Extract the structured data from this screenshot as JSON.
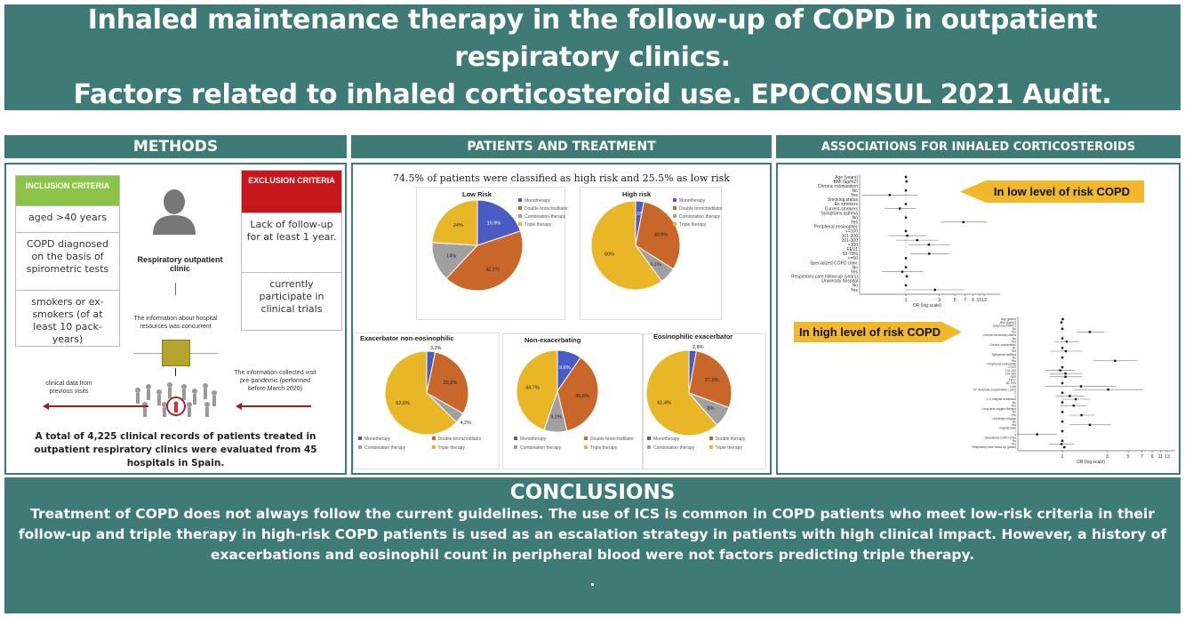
{
  "title": {
    "line1": "Inhaled maintenance therapy in the follow-up of COPD in outpatient respiratory clinics.",
    "line2": "Factors related to inhaled corticosteroid use. EPOCONSUL 2021 Audit."
  },
  "colors": {
    "teal": "#3e7a76",
    "inclusion": "#8cc44a",
    "exclusion": "#c8161d",
    "monotherapy": "#4a5bc4",
    "double": "#c9662a",
    "combination": "#a0a0a0",
    "triple": "#e8b626",
    "callout": "#f0b82a"
  },
  "sections": {
    "methods": "METHODS",
    "patients": "PATIENTS AND TREATMENT",
    "associations": "ASSOCIATIONS FOR INHALED CORTICOSTEROIDS"
  },
  "methods": {
    "inclusion": {
      "header": "INCLUSION CRITERIA",
      "items": [
        "aged  >40 years",
        "COPD diagnosed on the basis of spirometric tests",
        "smokers or ex-smokers (of at least 10 pack-years)"
      ]
    },
    "exclusion": {
      "header": "EXCLUSION CRITERIA",
      "items": [
        "Lack of follow-up for at least 1 year.",
        "currently participate in clinical trials"
      ]
    },
    "clinic": "Respiratory outpatient clinic",
    "hospital_info": "The information about hospital resources was concurrent",
    "left_note": "clinical data from previous visits",
    "right_note": "The information collected visit pre-pandemic (performed before March 2020)",
    "summary": "A total of 4,225 clinical records of patients treated in outpatient respiratory clinics were evaluated from 45 hospitals in Spain.",
    "icons": [
      "person-icon",
      "crowd-icon"
    ]
  },
  "patients": {
    "headline": "74.5% of patients were classified as high risk and 25.5% as low risk"
  },
  "chart_data": [
    {
      "type": "pie",
      "title": "Low Risk",
      "categories": [
        "Monotherapy",
        "Double bronchodilator",
        "Combination therapy",
        "Triple therapy"
      ],
      "values": [
        19.9,
        42.1,
        14,
        24
      ],
      "labels": [
        "19,9%",
        "42,1%",
        "14%",
        "24%"
      ],
      "legend": "right"
    },
    {
      "type": "pie",
      "title": "High risk",
      "categories": [
        "Monotherapy",
        "Double bronchodilator",
        "Combination therapy",
        "Triple therapy"
      ],
      "values": [
        3.0,
        30.9,
        6.1,
        60
      ],
      "labels": [
        "3,0%",
        "30,9%",
        "6,1%",
        "60%"
      ],
      "legend": "right"
    },
    {
      "type": "pie",
      "title": "Exacerbator non-eosinophilic",
      "categories": [
        "Monotherapy",
        "Double bronchodilator",
        "Combination therapy",
        "Triple therapy"
      ],
      "values": [
        3.3,
        29.9,
        4.2,
        62.6
      ],
      "labels": [
        "3,3%",
        "29,9%",
        "4,2%",
        "62,6%"
      ],
      "legend": "bottom"
    },
    {
      "type": "pie",
      "title": "Non-exacerbating",
      "categories": [
        "Monotherapy",
        "Double bronchodilator",
        "Combination therapy",
        "Triple therapy"
      ],
      "values": [
        9.6,
        36.6,
        9.1,
        44.7
      ],
      "labels": [
        "9,6%",
        "36,6%",
        "9,1%",
        "44,7%"
      ],
      "legend": "bottom"
    },
    {
      "type": "pie",
      "title": "Eosinophilic exacerbator",
      "categories": [
        "Monotherapy",
        "Double therapy",
        "Combination therapy",
        "Triple therapy"
      ],
      "values": [
        2.8,
        27.8,
        8,
        61.4
      ],
      "labels": [
        "2,8%",
        "27,8%",
        "8%",
        "61,4%"
      ],
      "legend": "bottom"
    },
    {
      "type": "scatter",
      "subtype": "forest",
      "xscale": "log",
      "xlabel": "OR (log scale)",
      "xticks": [
        "1",
        "3",
        "5",
        "7",
        "9",
        "11",
        "13"
      ],
      "callout": "In low level of risk COPD",
      "rows": [
        {
          "label": "Age (years)",
          "or": 1
        },
        {
          "label": "BMI (kg/m2)",
          "or": 1.02
        },
        {
          "label": "Chronic colonization"
        },
        {
          "label": "No",
          "or": 1
        },
        {
          "label": "Yes",
          "or": 0.59,
          "lo": 0.24,
          "hi": 1.47
        },
        {
          "label": "Smoking status"
        },
        {
          "label": "Ex-smokers",
          "or": 1
        },
        {
          "label": "Current-smokers",
          "or": 0.82,
          "lo": 0.5,
          "hi": 1.38
        },
        {
          "label": "Symptoms asthma"
        },
        {
          "label": "No",
          "or": 1
        },
        {
          "label": "Yes",
          "or": 6.6,
          "lo": 3.1,
          "hi": 14.4
        },
        {
          "label": "Peripheral eosinophils"
        },
        {
          "label": "<=100",
          "or": 1
        },
        {
          "label": "101-200",
          "or": 1.05,
          "lo": 0.56,
          "hi": 1.93
        },
        {
          "label": "201-300",
          "or": 1.45,
          "lo": 0.73,
          "hi": 2.93
        },
        {
          "label": ">300",
          "or": 2.13,
          "lo": 1.09,
          "hi": 4.2
        },
        {
          "label": "FEV1"
        },
        {
          "label": "50-79%",
          "or": 2.15,
          "lo": 1.16,
          "hi": 4.1
        },
        {
          "label": "<=50",
          "or": 1
        },
        {
          "label": "Specialized COPD clinic"
        },
        {
          "label": "No",
          "or": 1
        },
        {
          "label": "Yes",
          "or": 0.89,
          "lo": 0.46,
          "hi": 1.76
        },
        {
          "label": "Respiratory care follow-up (years)",
          "or": 1.03,
          "lo": 0.98,
          "hi": 1.08
        },
        {
          "label": "University hospital"
        },
        {
          "label": "No",
          "or": 1
        },
        {
          "label": "Yes",
          "or": 2.6,
          "lo": 1,
          "hi": 6.7
        }
      ]
    },
    {
      "type": "scatter",
      "subtype": "forest",
      "xscale": "log",
      "xlabel": "OR (log scale)",
      "xticks": [
        "1",
        "3",
        "5",
        "7",
        "9",
        "11",
        "13"
      ],
      "callout": "In high level of risk COPD",
      "rows": [
        {
          "label": "Age (years)",
          "or": 1.01
        },
        {
          "label": "BMI (kg/m2)",
          "or": 0.98
        },
        {
          "label": "Dyspnea (mMRC)"
        },
        {
          "label": "No",
          "or": 1
        },
        {
          "label": "Yes",
          "or": 1.96,
          "lo": 1.42,
          "hi": 2.78
        },
        {
          "label": "Chronic bronchitis criteria"
        },
        {
          "label": "No",
          "or": 1
        },
        {
          "label": "Yes",
          "or": 1.11,
          "lo": 0.83,
          "hi": 1.52
        },
        {
          "label": "Chronic colonization"
        },
        {
          "label": "No",
          "or": 1
        },
        {
          "label": "Yes",
          "or": 1.09,
          "lo": 0.74,
          "hi": 1.66
        },
        {
          "label": "Symptoms asthma"
        },
        {
          "label": "No",
          "or": 1
        },
        {
          "label": "Yes",
          "or": 3.63,
          "lo": 2.15,
          "hi": 6.2
        },
        {
          "label": "Peripheral eosinophils"
        },
        {
          "label": "<=100",
          "or": 1
        },
        {
          "label": "101-200",
          "or": 0.95,
          "lo": 0.66,
          "hi": 1.36
        },
        {
          "label": "201-300",
          "or": 1.08,
          "lo": 0.73,
          "hi": 1.64
        },
        {
          "label": ">300",
          "or": 1.08,
          "lo": 0.73,
          "hi": 1.62
        },
        {
          "label": "FEV1"
        },
        {
          "label": "50-79%",
          "or": 1
        },
        {
          "label": "<=50",
          "or": 1.58,
          "lo": 0.66,
          "hi": 3.76
        },
        {
          "label": "Nº moderate exacerbation (12m)",
          "or": 3.07,
          "lo": 1.31,
          "hi": 7.3
        },
        {
          "label": "0",
          "or": 1
        },
        {
          "label": "1",
          "or": 1.2,
          "lo": 0.85,
          "hi": 1.7
        },
        {
          "label": ">=1 hospital admission",
          "or": 1.39,
          "lo": 1,
          "hi": 1.99
        },
        {
          "label": "No",
          "or": 1
        },
        {
          "label": "Yes",
          "or": 1.32,
          "lo": 0.95,
          "hi": 1.81
        },
        {
          "label": "Long-term oxygen therapy"
        },
        {
          "label": "No",
          "or": 1
        },
        {
          "label": "Yes",
          "or": 1.6,
          "lo": 1.17,
          "hi": 2.2
        },
        {
          "label": "University hospital"
        },
        {
          "label": "No",
          "or": 1
        },
        {
          "label": "Yes",
          "or": 1.96,
          "lo": 1.2,
          "hi": 3.3
        },
        {
          "label": "Hospital level"
        },
        {
          "label": "I",
          "or": 1
        },
        {
          "label": "II",
          "or": 0.54,
          "lo": 0.33,
          "hi": 0.88
        },
        {
          "label": "Specialized COPD clinic"
        },
        {
          "label": "No",
          "or": 1
        },
        {
          "label": "Yes",
          "or": 0.98,
          "lo": 0.72,
          "hi": 1.34
        },
        {
          "label": "Respiratory care follow-up (years)",
          "or": 1.05,
          "lo": 1.02,
          "hi": 1.08
        }
      ]
    }
  ],
  "conclusions": {
    "title": "CONCLUSIONS",
    "text": "Treatment of COPD does not always follow the current guidelines. The use of ICS is common in COPD patients who meet low-risk criteria in their follow-up and triple therapy in high-risk COPD patients is  used as an escalation strategy in patients with high clinical impact. However, a history of exacerbations and eosinophil count in peripheral blood were not factors predicting triple therapy.",
    "footer": "."
  }
}
